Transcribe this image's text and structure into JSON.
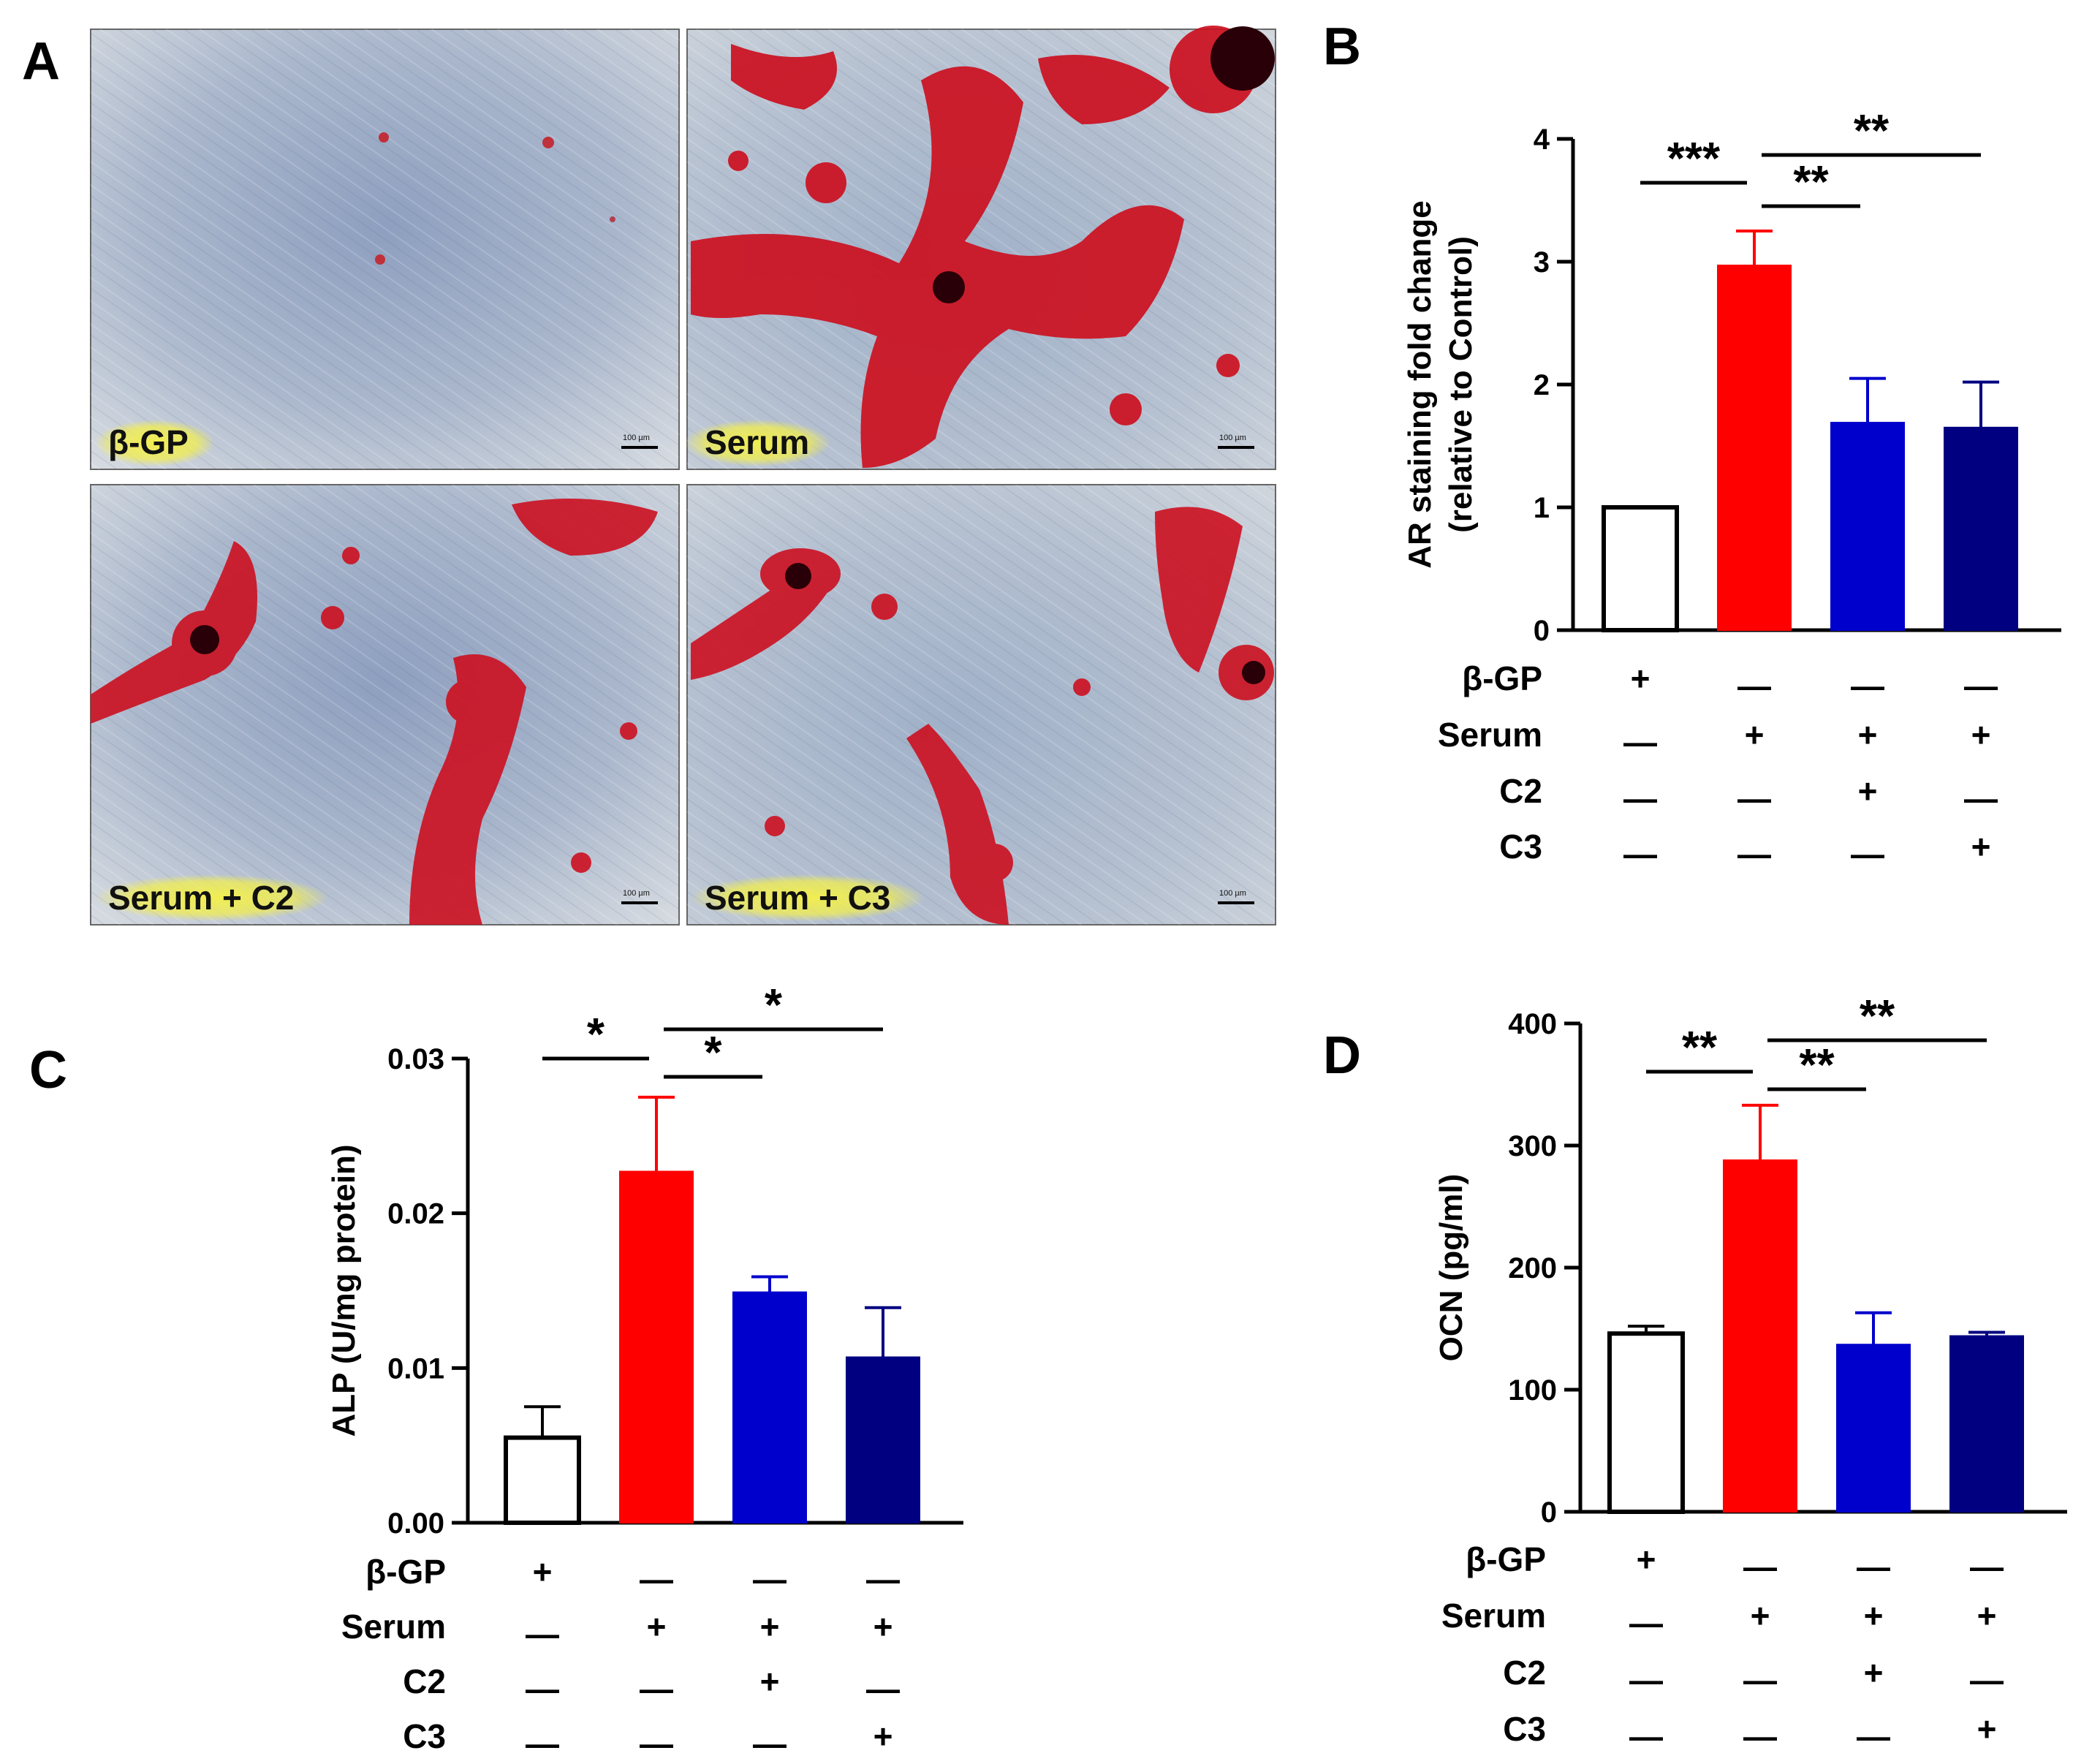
{
  "panel_a": {
    "letter": "A",
    "images": [
      {
        "label": "β-GP",
        "scale_bar": "100 µm"
      },
      {
        "label": "Serum",
        "scale_bar": "100 µm"
      },
      {
        "label": "Serum + C2",
        "scale_bar": "100 µm"
      },
      {
        "label": "Serum + C3",
        "scale_bar": "100 µm"
      }
    ]
  },
  "condition_rows": [
    "β-GP",
    "Serum",
    "C2",
    "C3"
  ],
  "condition_matrix": [
    [
      "+",
      "—",
      "—",
      "—"
    ],
    [
      "—",
      "+",
      "+",
      "+"
    ],
    [
      "—",
      "—",
      "+",
      "—"
    ],
    [
      "—",
      "—",
      "—",
      "+"
    ]
  ],
  "colors": {
    "control_fill": "#ffffff",
    "serum": "#ff0000",
    "c2": "#0000cc",
    "c3": "#000080",
    "stain_red": "#cc1020",
    "cell_blue": "#a9b8cc",
    "label_highlight": "#f4f04a"
  },
  "chart_data": [
    {
      "panel": "B",
      "type": "bar",
      "categories": [
        "β-GP",
        "Serum",
        "Serum + C2",
        "Serum + C3"
      ],
      "values": [
        1.0,
        2.97,
        1.69,
        1.65
      ],
      "errors": [
        0,
        0.28,
        0.36,
        0.37
      ],
      "ylabel_line1": "AR staining fold change",
      "ylabel_line2": "(relative to Control)",
      "ylim": [
        0,
        4
      ],
      "ticks": [
        0,
        1,
        2,
        3,
        4
      ],
      "tick_labels": [
        "0",
        "1",
        "2",
        "3",
        "4"
      ],
      "significance": [
        {
          "from": 0,
          "to": 1,
          "label": "***"
        },
        {
          "from": 1,
          "to": 2,
          "label": "**"
        },
        {
          "from": 1,
          "to": 3,
          "label": "**"
        }
      ]
    },
    {
      "panel": "C",
      "type": "bar",
      "categories": [
        "β-GP",
        "Serum",
        "Serum + C2",
        "Serum + C3"
      ],
      "values": [
        0.0055,
        0.0227,
        0.0149,
        0.0107
      ],
      "errors": [
        0.002,
        0.0048,
        0.001,
        0.0032
      ],
      "ylabel_line1": "ALP (U/mg protein)",
      "ylabel_line2": "",
      "ylim": [
        0,
        0.03
      ],
      "ticks": [
        0,
        0.01,
        0.02,
        0.03
      ],
      "tick_labels": [
        "0.00",
        "0.01",
        "0.02",
        "0.03"
      ],
      "significance": [
        {
          "from": 0,
          "to": 1,
          "label": "*"
        },
        {
          "from": 1,
          "to": 2,
          "label": "*"
        },
        {
          "from": 1,
          "to": 3,
          "label": "*"
        }
      ]
    },
    {
      "panel": "D",
      "type": "bar",
      "categories": [
        "β-GP",
        "Serum",
        "Serum + C2",
        "Serum + C3"
      ],
      "values": [
        146,
        288,
        137,
        144
      ],
      "errors": [
        6,
        45,
        26,
        3
      ],
      "ylabel_line1": "OCN (pg/ml)",
      "ylabel_line2": "",
      "ylim": [
        0,
        400
      ],
      "ticks": [
        0,
        100,
        200,
        300,
        400
      ],
      "tick_labels": [
        "0",
        "100",
        "200",
        "300",
        "400"
      ],
      "significance": [
        {
          "from": 0,
          "to": 1,
          "label": "**"
        },
        {
          "from": 1,
          "to": 2,
          "label": "**"
        },
        {
          "from": 1,
          "to": 3,
          "label": "**"
        }
      ]
    }
  ]
}
